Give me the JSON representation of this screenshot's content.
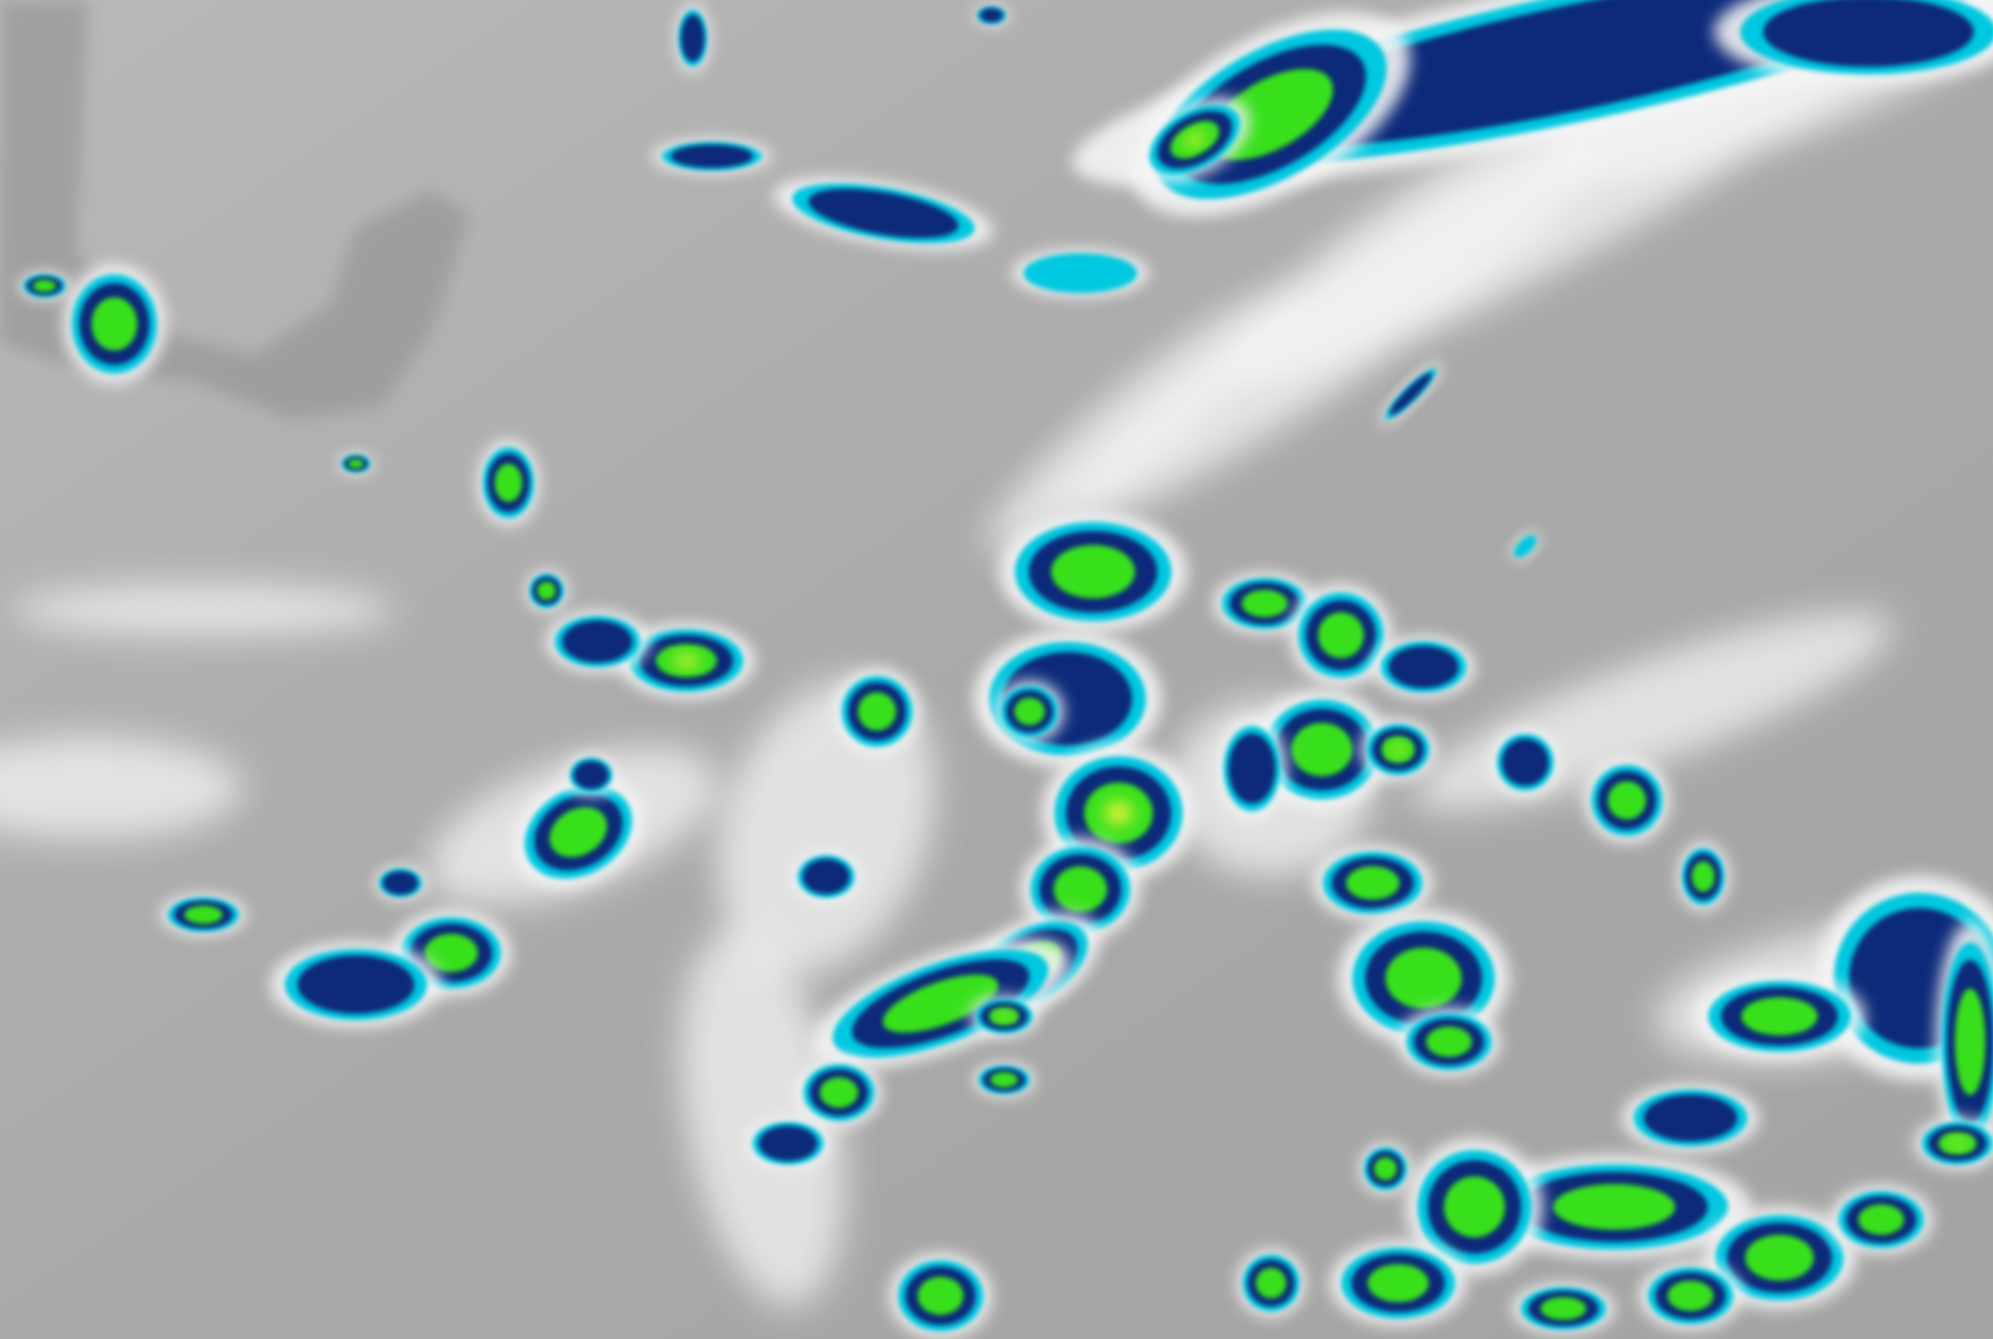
{
  "image": {
    "kind": "infrared satellite cloud imagery",
    "colors": {
      "background_gray": "#a9a9a9",
      "land_dark_gray": "#8e8e8e",
      "cirrus_white": "#f4f4f4",
      "cold_cyan": "#00c8e0",
      "colder_navy": "#0a2a7a",
      "coldest_green": "#39e01a",
      "peak_yellow": "#e8f53a"
    }
  }
}
